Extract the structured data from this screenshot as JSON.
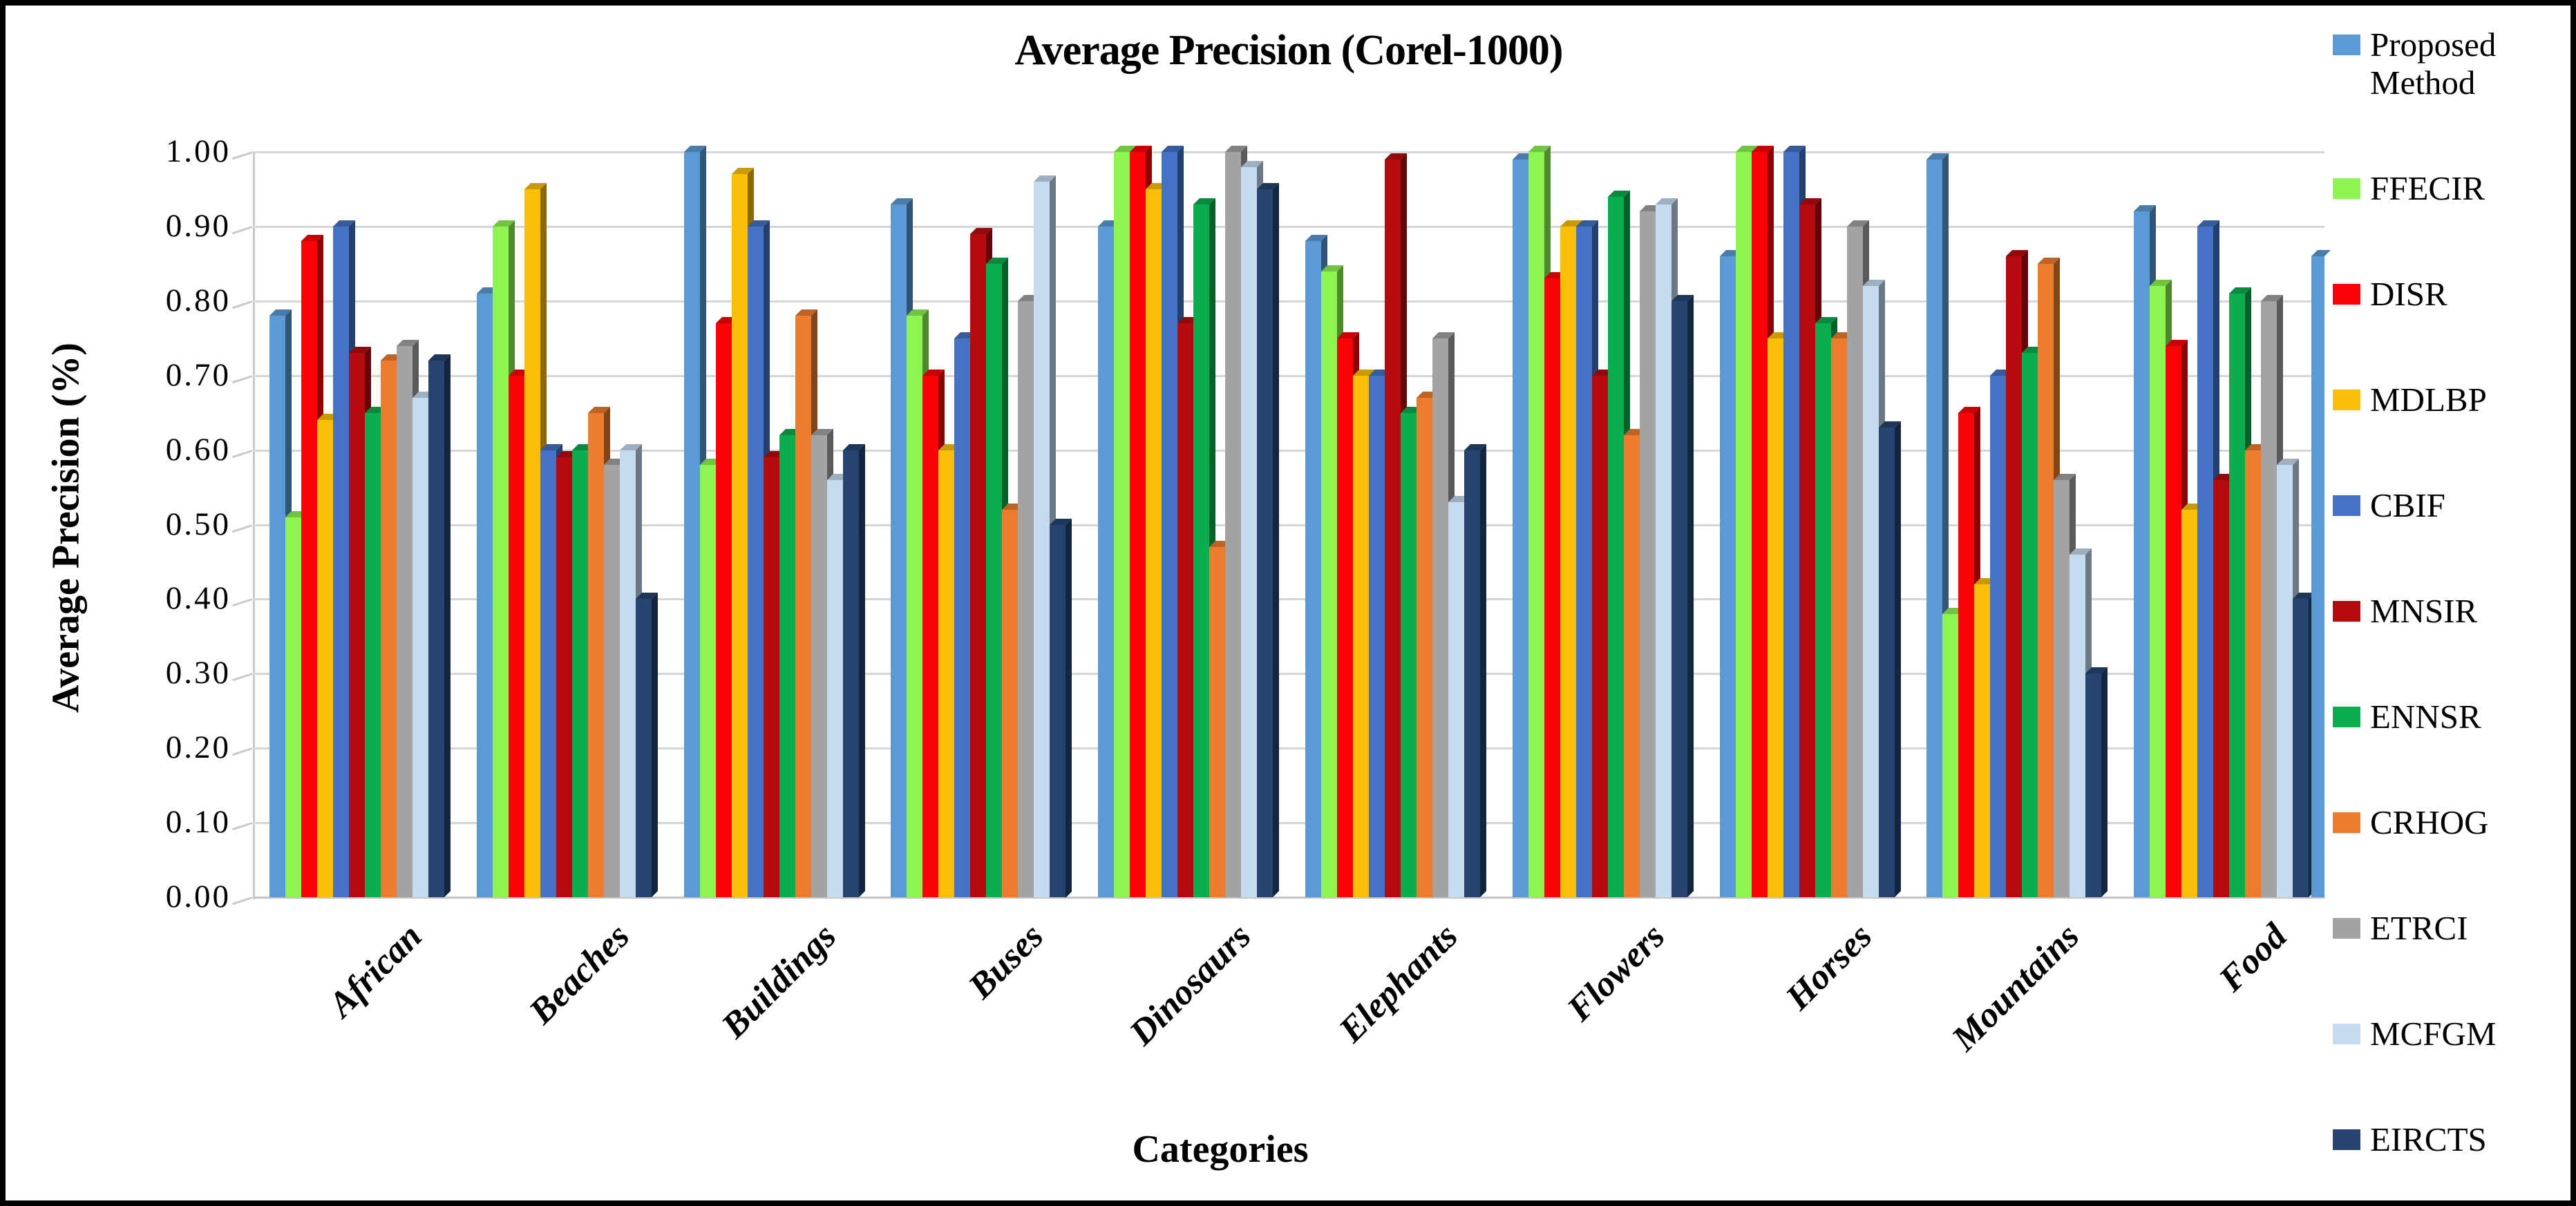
{
  "chart_data": {
    "type": "bar",
    "title": "Average Precision (Corel-1000)",
    "xlabel": "Categories",
    "ylabel": "Average Precision (%)",
    "ylim": [
      0,
      1
    ],
    "ytick_step": 0.1,
    "yticks": [
      "0.00",
      "0.10",
      "0.20",
      "0.30",
      "0.40",
      "0.50",
      "0.60",
      "0.70",
      "0.80",
      "0.90",
      "1.00"
    ],
    "grid": true,
    "legend_position": "right",
    "categories": [
      "African",
      "Beaches",
      "Buildings",
      "Buses",
      "Dinosaurs",
      "Elephants",
      "Flowers",
      "Horses",
      "Mountains",
      "Food"
    ],
    "series": [
      {
        "name": "Proposed Method",
        "color": "#5B9BD5",
        "values": [
          0.78,
          0.81,
          1.0,
          0.93,
          0.9,
          0.88,
          0.99,
          0.86,
          0.99,
          0.92
        ]
      },
      {
        "name": "FFECIR",
        "color": "#8DF551",
        "values": [
          0.51,
          0.9,
          0.58,
          0.78,
          1.0,
          0.84,
          1.0,
          1.0,
          0.38,
          0.82
        ]
      },
      {
        "name": "DISR",
        "color": "#FB0306",
        "values": [
          0.88,
          0.7,
          0.77,
          0.7,
          1.0,
          0.75,
          0.83,
          1.0,
          0.65,
          0.74
        ]
      },
      {
        "name": "MDLBP",
        "color": "#FBBF08",
        "values": [
          0.64,
          0.95,
          0.97,
          0.6,
          0.95,
          0.7,
          0.9,
          0.75,
          0.42,
          0.52
        ]
      },
      {
        "name": "CBIF",
        "color": "#4472C4",
        "values": [
          0.9,
          0.6,
          0.9,
          0.75,
          1.0,
          0.7,
          0.9,
          1.0,
          0.7,
          0.9
        ]
      },
      {
        "name": "MNSIR",
        "color": "#B50B10",
        "values": [
          0.73,
          0.59,
          0.59,
          0.89,
          0.77,
          0.99,
          0.7,
          0.93,
          0.86,
          0.56
        ]
      },
      {
        "name": "ENNSR",
        "color": "#0CAD4E",
        "values": [
          0.65,
          0.6,
          0.62,
          0.85,
          0.93,
          0.65,
          0.94,
          0.77,
          0.73,
          0.81
        ]
      },
      {
        "name": "CRHOG",
        "color": "#EC7D2E",
        "values": [
          0.72,
          0.65,
          0.78,
          0.52,
          0.47,
          0.67,
          0.62,
          0.75,
          0.85,
          0.6
        ]
      },
      {
        "name": "ETRCI",
        "color": "#A3A3A3",
        "values": [
          0.74,
          0.58,
          0.62,
          0.8,
          1.0,
          0.75,
          0.92,
          0.9,
          0.56,
          0.8
        ]
      },
      {
        "name": "MCFGM",
        "color": "#C5DCF0",
        "values": [
          0.67,
          0.6,
          0.56,
          0.96,
          0.98,
          0.53,
          0.93,
          0.82,
          0.46,
          0.58
        ]
      },
      {
        "name": "EIRCTS",
        "color": "#254470",
        "values": [
          0.72,
          0.4,
          0.6,
          0.5,
          0.95,
          0.6,
          0.8,
          0.63,
          0.3,
          0.4
        ]
      }
    ],
    "right_edge_clipped_bar": {
      "color": "#5B9BD5",
      "value": 0.86
    }
  },
  "colors": {
    "grid": "#D6D6D6",
    "baseline": "#C4C4C4",
    "axis": "#C9C9C9",
    "border": "#000000",
    "background": "#FFFFFF"
  }
}
